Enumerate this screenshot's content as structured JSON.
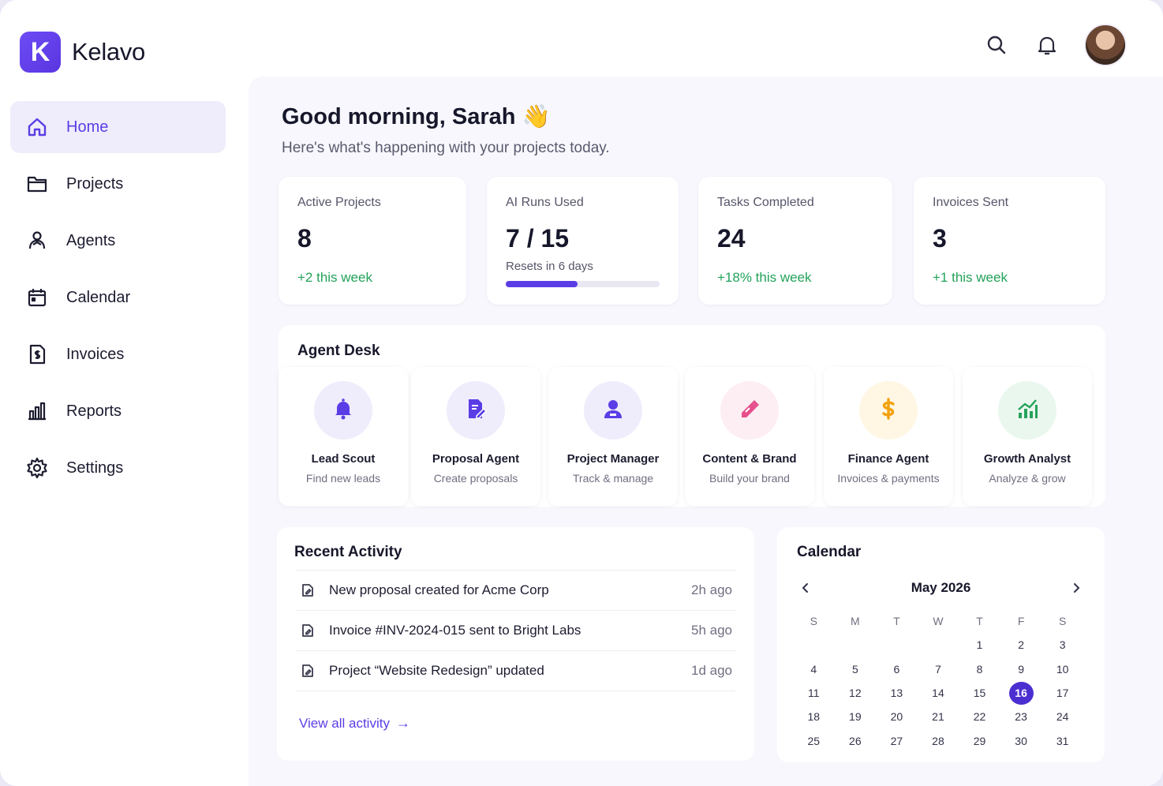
{
  "app": {
    "name": "Kelavo",
    "logo_letter": "K",
    "accent": "#5b3de6",
    "positive": "#23a25a"
  },
  "sidebar": {
    "items": [
      {
        "label": "Home",
        "icon": "home-icon",
        "active": true
      },
      {
        "label": "Projects",
        "icon": "folder-icon",
        "active": false
      },
      {
        "label": "Agents",
        "icon": "agents-icon",
        "active": false
      },
      {
        "label": "Calendar",
        "icon": "calendar-icon",
        "active": false
      },
      {
        "label": "Invoices",
        "icon": "invoice-icon",
        "active": false
      },
      {
        "label": "Reports",
        "icon": "reports-icon",
        "active": false
      },
      {
        "label": "Settings",
        "icon": "gear-icon",
        "active": false
      }
    ]
  },
  "header": {
    "icons": [
      "search-icon",
      "bell-icon"
    ],
    "avatar": "user-avatar"
  },
  "main": {
    "greeting": "Good morning, Sarah 👋",
    "subtitle": "Here's what's happening with your projects today."
  },
  "stats": [
    {
      "label": "Active Projects",
      "value": "8",
      "change": "+2 this week"
    },
    {
      "label": "AI Runs Used",
      "value": "7 / 15",
      "sub": "Resets in 6 days",
      "progress": 0.467
    },
    {
      "label": "Tasks Completed",
      "value": "24",
      "change": "+18% this week"
    },
    {
      "label": "Invoices Sent",
      "value": "3",
      "change": "+1 this week"
    }
  ],
  "agent_desk": {
    "title": "Agent Desk",
    "agents": [
      {
        "name": "Lead Scout",
        "desc": "Find new leads",
        "icon": "bell-icon",
        "color": "#5b3de6",
        "bg": "#efecfc"
      },
      {
        "name": "Proposal Agent",
        "desc": "Create proposals",
        "icon": "document-edit-icon",
        "color": "#5b3de6",
        "bg": "#efecfc"
      },
      {
        "name": "Project Manager",
        "desc": "Track & manage",
        "icon": "manager-icon",
        "color": "#5b3de6",
        "bg": "#efecfc"
      },
      {
        "name": "Content & Brand",
        "desc": "Build your brand",
        "icon": "brush-icon",
        "color": "#e64f8c",
        "bg": "#fdeef4"
      },
      {
        "name": "Finance Agent",
        "desc": "Invoices & payments",
        "icon": "dollar-icon",
        "color": "#f2a20f",
        "bg": "#fff6e4"
      },
      {
        "name": "Growth Analyst",
        "desc": "Analyze & grow",
        "icon": "growth-chart-icon",
        "color": "#25a35b",
        "bg": "#e9f7ee"
      }
    ]
  },
  "activity": {
    "title": "Recent Activity",
    "items": [
      {
        "text": "New proposal created for Acme Corp",
        "time": "2h ago"
      },
      {
        "text": "Invoice #INV-2024-015 sent to Bright Labs",
        "time": "5h ago"
      },
      {
        "text": "Project “Website Redesign” updated",
        "time": "1d ago"
      }
    ],
    "view_all": "View all activity",
    "view_all_arrow": "→"
  },
  "calendar": {
    "title": "Calendar",
    "month": "May 2026",
    "weekdays": [
      "S",
      "M",
      "T",
      "W",
      "T",
      "F",
      "S"
    ],
    "weeks": [
      [
        "",
        "",
        "",
        "",
        "1",
        "2",
        "3"
      ],
      [
        "4",
        "5",
        "6",
        "7",
        "8",
        "9",
        "10"
      ],
      [
        "11",
        "12",
        "13",
        "14",
        "15",
        "16",
        "17"
      ],
      [
        "18",
        "19",
        "20",
        "21",
        "22",
        "23",
        "24"
      ],
      [
        "25",
        "26",
        "27",
        "28",
        "29",
        "30",
        "31"
      ]
    ],
    "selected": "16"
  }
}
